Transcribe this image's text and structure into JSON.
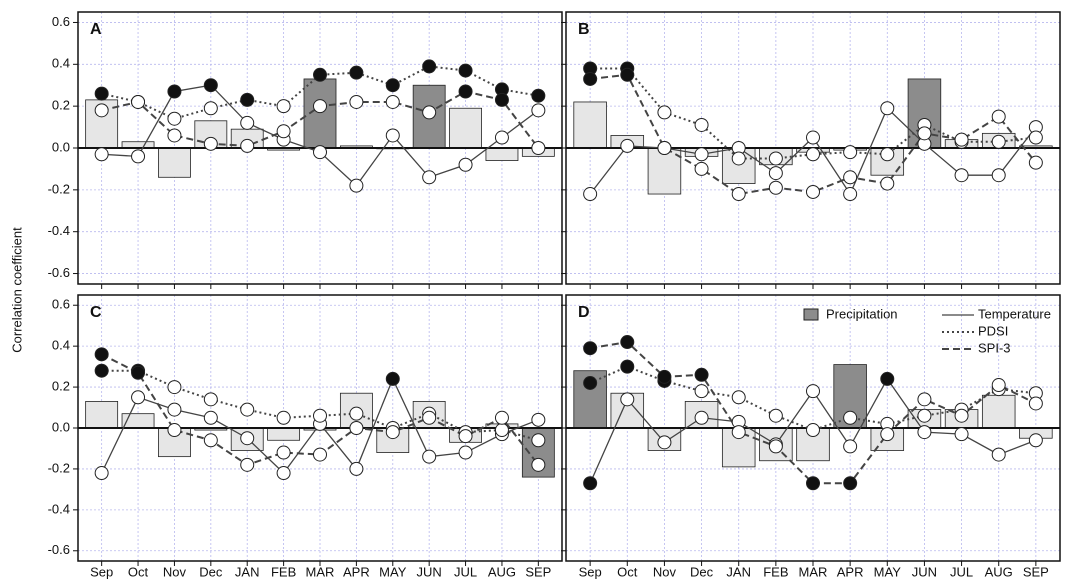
{
  "figure": {
    "ylabel": "Correlation coefficient"
  },
  "chart_data": [
    {
      "type": "combo",
      "label": "A",
      "ylim": [
        -0.65,
        0.65
      ],
      "yticks": [
        -0.6,
        -0.4,
        -0.2,
        {
          "value": 0,
          "label": "0.0"
        },
        0.2,
        0.4,
        0.6
      ],
      "ytick_labels": true,
      "grid": true,
      "series": [
        {
          "kind": "bar",
          "color": "#e6e6e6",
          "significant_color": "#8c8c8c",
          "values": [
            0.23,
            0.03,
            -0.14,
            0.13,
            0.09,
            -0.01,
            0.33,
            0.01,
            0.0,
            0.3,
            0.19,
            -0.06,
            -0.04
          ],
          "significant": [
            false,
            false,
            false,
            false,
            false,
            false,
            true,
            false,
            false,
            true,
            false,
            false,
            false
          ]
        },
        {
          "kind": "line",
          "line_style": "solid",
          "color": "#444444",
          "values": [
            -0.03,
            -0.04,
            0.27,
            0.3,
            0.12,
            0.04,
            -0.02,
            -0.18,
            0.06,
            -0.14,
            -0.08,
            0.05,
            0.18
          ],
          "significant": [
            false,
            false,
            true,
            true,
            false,
            false,
            false,
            false,
            false,
            false,
            false,
            false,
            false
          ]
        },
        {
          "kind": "line",
          "line_style": "dotted",
          "color": "#444444",
          "values": [
            0.26,
            0.22,
            0.14,
            0.19,
            0.23,
            0.2,
            0.35,
            0.36,
            0.3,
            0.39,
            0.37,
            0.28,
            0.25
          ],
          "significant": [
            true,
            false,
            false,
            false,
            true,
            false,
            true,
            true,
            true,
            true,
            true,
            true,
            true
          ]
        },
        {
          "kind": "line",
          "line_style": "dashed",
          "color": "#444444",
          "values": [
            0.18,
            0.22,
            0.06,
            0.02,
            0.01,
            0.08,
            0.2,
            0.22,
            0.22,
            0.17,
            0.27,
            0.23,
            0.0
          ],
          "significant": [
            false,
            false,
            false,
            false,
            false,
            false,
            false,
            false,
            false,
            false,
            true,
            true,
            false
          ]
        }
      ]
    },
    {
      "type": "combo",
      "label": "B",
      "ylim": [
        -0.65,
        0.65
      ],
      "yticks": [
        -0.6,
        -0.4,
        -0.2,
        0,
        0.2,
        0.4,
        0.6
      ],
      "ytick_labels": false,
      "grid": true,
      "series": [
        {
          "kind": "bar",
          "color": "#e6e6e6",
          "significant_color": "#8c8c8c",
          "values": [
            0.22,
            0.06,
            -0.22,
            -0.04,
            -0.17,
            -0.08,
            -0.02,
            -0.01,
            -0.13,
            0.33,
            0.04,
            0.07,
            0.01
          ],
          "significant": [
            false,
            false,
            false,
            false,
            false,
            false,
            false,
            false,
            false,
            true,
            false,
            false,
            false
          ]
        },
        {
          "kind": "line",
          "line_style": "solid",
          "color": "#444444",
          "values": [
            -0.22,
            0.01,
            0.0,
            -0.03,
            0.0,
            -0.12,
            0.05,
            -0.22,
            0.19,
            0.02,
            -0.13,
            -0.13,
            0.1
          ],
          "significant": [
            false,
            false,
            false,
            false,
            false,
            false,
            false,
            false,
            false,
            false,
            false,
            false,
            false
          ]
        },
        {
          "kind": "line",
          "line_style": "dotted",
          "color": "#444444",
          "values": [
            0.38,
            0.38,
            0.17,
            0.11,
            -0.05,
            -0.05,
            -0.03,
            -0.02,
            -0.03,
            0.11,
            0.03,
            0.03,
            0.05
          ],
          "significant": [
            true,
            true,
            false,
            false,
            false,
            false,
            false,
            false,
            false,
            false,
            false,
            false,
            false
          ]
        },
        {
          "kind": "line",
          "line_style": "dashed",
          "color": "#444444",
          "values": [
            0.33,
            0.35,
            0.0,
            -0.1,
            -0.22,
            -0.19,
            -0.21,
            -0.14,
            -0.17,
            0.07,
            0.04,
            0.15,
            -0.07
          ],
          "significant": [
            true,
            true,
            false,
            false,
            false,
            false,
            false,
            false,
            false,
            false,
            false,
            false,
            false
          ]
        }
      ]
    },
    {
      "type": "combo",
      "label": "C",
      "ylim": [
        -0.65,
        0.65
      ],
      "categories": [
        "Sep",
        "Oct",
        "Nov",
        "Dec",
        "JAN",
        "FEB",
        "MAR",
        "APR",
        "MAY",
        "JUN",
        "JUL",
        "AUG",
        "SEP"
      ],
      "yticks": [
        -0.6,
        -0.4,
        -0.2,
        {
          "value": 0,
          "label": "0.0"
        },
        0.2,
        0.4,
        0.6
      ],
      "ytick_labels": true,
      "grid": true,
      "series": [
        {
          "kind": "bar",
          "color": "#e6e6e6",
          "significant_color": "#8c8c8c",
          "values": [
            0.13,
            0.07,
            -0.14,
            -0.01,
            -0.11,
            -0.06,
            -0.01,
            0.17,
            -0.12,
            0.13,
            -0.07,
            0.02,
            -0.24
          ],
          "significant": [
            false,
            false,
            false,
            false,
            false,
            false,
            false,
            false,
            false,
            false,
            false,
            false,
            true
          ]
        },
        {
          "kind": "line",
          "line_style": "solid",
          "color": "#444444",
          "values": [
            -0.22,
            0.15,
            0.09,
            0.05,
            -0.05,
            -0.22,
            0.02,
            -0.2,
            0.24,
            -0.14,
            -0.12,
            -0.03,
            0.04
          ],
          "significant": [
            false,
            false,
            false,
            false,
            false,
            false,
            false,
            false,
            true,
            false,
            false,
            false,
            false
          ]
        },
        {
          "kind": "line",
          "line_style": "dotted",
          "color": "#444444",
          "values": [
            0.28,
            0.28,
            0.2,
            0.14,
            0.09,
            0.05,
            0.06,
            0.07,
            0.0,
            0.07,
            -0.02,
            -0.01,
            -0.06
          ],
          "significant": [
            true,
            true,
            false,
            false,
            false,
            false,
            false,
            false,
            false,
            false,
            false,
            false,
            false
          ]
        },
        {
          "kind": "line",
          "line_style": "dashed",
          "color": "#444444",
          "values": [
            0.36,
            0.27,
            -0.01,
            -0.06,
            -0.18,
            -0.12,
            -0.13,
            0.0,
            -0.02,
            0.05,
            -0.04,
            0.05,
            -0.18
          ],
          "significant": [
            true,
            true,
            false,
            false,
            false,
            false,
            false,
            false,
            false,
            false,
            false,
            false,
            false
          ]
        }
      ]
    },
    {
      "type": "combo",
      "label": "D",
      "ylim": [
        -0.65,
        0.65
      ],
      "categories": [
        "Sep",
        "Oct",
        "Nov",
        "Dec",
        "JAN",
        "FEB",
        "MAR",
        "APR",
        "MAY",
        "JUN",
        "JUL",
        "AUG",
        "SEP"
      ],
      "yticks": [
        -0.6,
        -0.4,
        -0.2,
        0,
        0.2,
        0.4,
        0.6
      ],
      "ytick_labels": false,
      "grid": true,
      "legend": "upper right",
      "series": [
        {
          "kind": "bar",
          "name": "Precipitation",
          "color": "#e6e6e6",
          "significant_color": "#8c8c8c",
          "values": [
            0.28,
            0.17,
            -0.11,
            0.13,
            -0.19,
            -0.16,
            -0.16,
            0.31,
            -0.11,
            0.09,
            0.09,
            0.16,
            -0.05
          ],
          "significant": [
            true,
            false,
            false,
            false,
            false,
            false,
            false,
            true,
            false,
            false,
            false,
            false,
            false
          ]
        },
        {
          "kind": "line",
          "name": "Temperature",
          "line_style": "solid",
          "color": "#444444",
          "values": [
            -0.27,
            0.14,
            -0.07,
            0.05,
            0.03,
            -0.08,
            0.18,
            -0.09,
            0.24,
            -0.02,
            -0.03,
            -0.13,
            -0.06
          ],
          "significant": [
            true,
            false,
            false,
            false,
            false,
            false,
            false,
            false,
            true,
            false,
            false,
            false,
            false
          ]
        },
        {
          "kind": "line",
          "name": "PDSI",
          "line_style": "dotted",
          "color": "#444444",
          "values": [
            0.22,
            0.3,
            0.23,
            0.18,
            0.15,
            0.06,
            -0.01,
            0.05,
            0.02,
            0.06,
            0.09,
            0.19,
            0.17
          ],
          "significant": [
            true,
            true,
            true,
            false,
            false,
            false,
            false,
            false,
            false,
            false,
            false,
            false,
            false
          ]
        },
        {
          "kind": "line",
          "name": "SPI-3",
          "line_style": "dashed",
          "color": "#444444",
          "values": [
            0.39,
            0.42,
            0.25,
            0.26,
            -0.02,
            -0.09,
            -0.27,
            -0.27,
            -0.03,
            0.14,
            0.06,
            0.21,
            0.12
          ],
          "significant": [
            true,
            true,
            true,
            true,
            false,
            false,
            true,
            true,
            false,
            false,
            false,
            false,
            false
          ]
        }
      ]
    }
  ]
}
